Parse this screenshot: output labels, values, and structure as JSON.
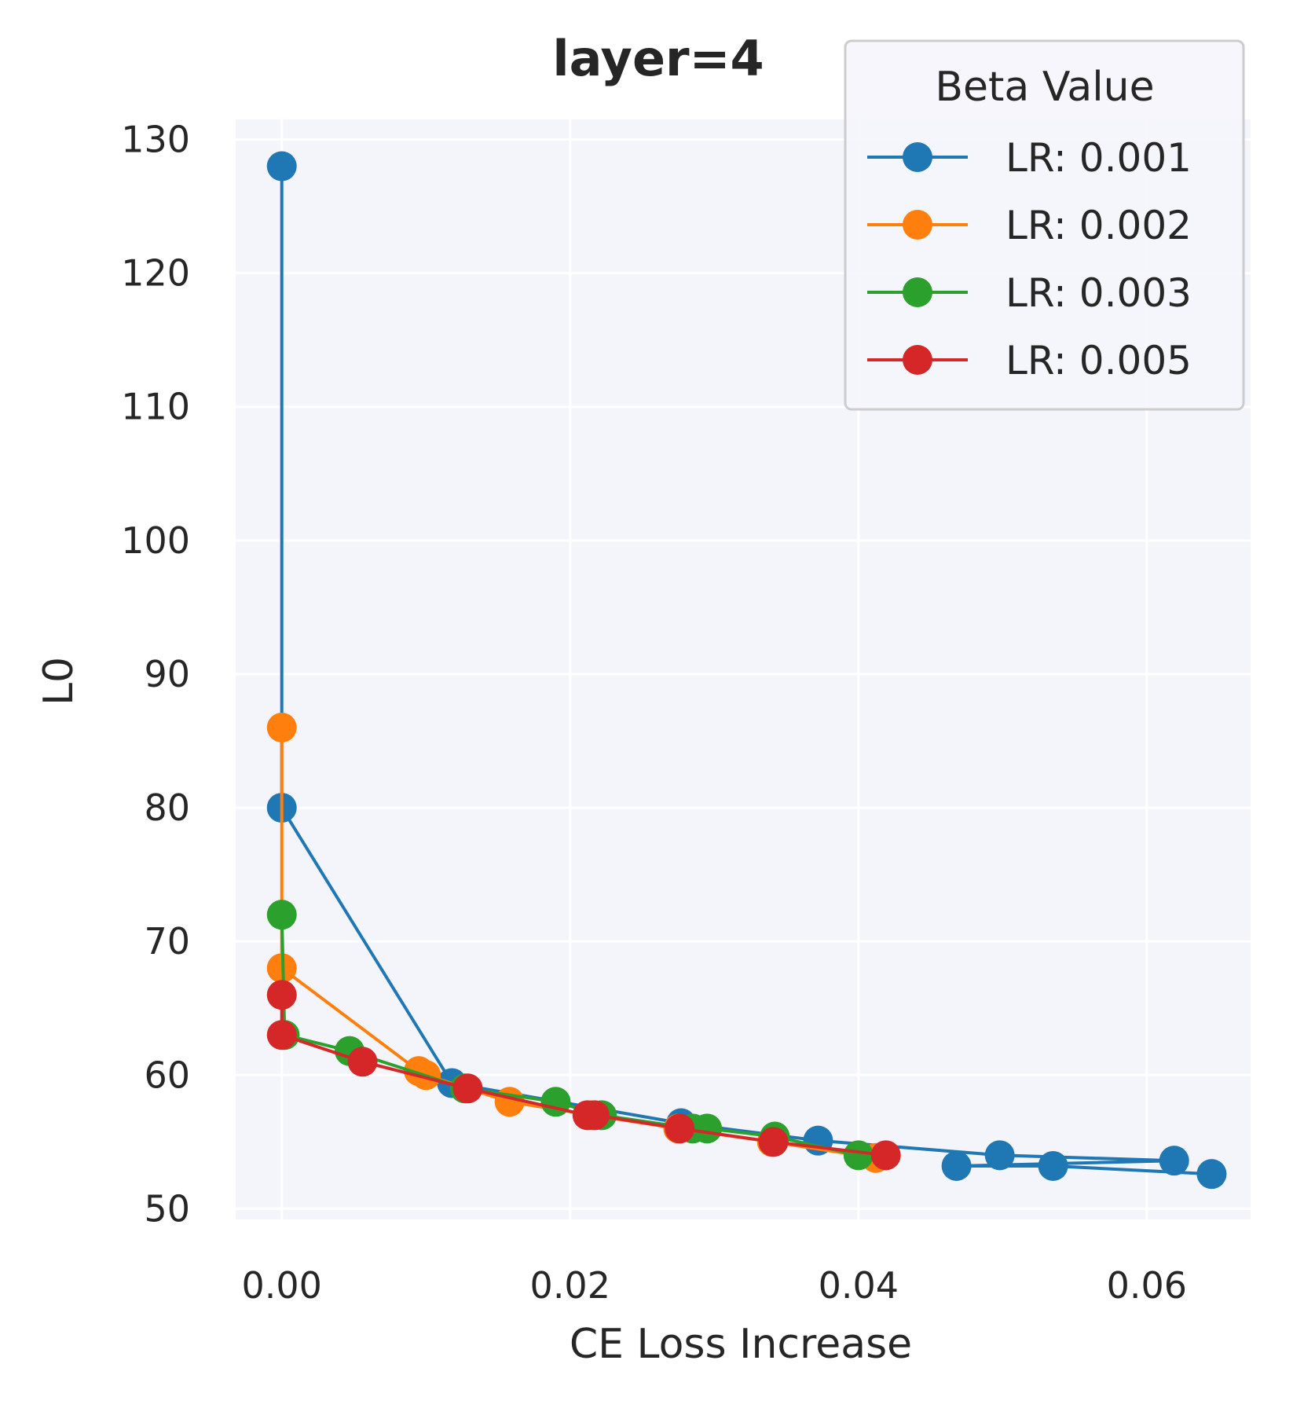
{
  "chart_data": {
    "type": "line",
    "title": "layer=4",
    "xlabel": "CE Loss Increase",
    "ylabel": "L0",
    "xlim": [
      -0.0032,
      0.0672
    ],
    "ylim": [
      49.2,
      131.5
    ],
    "xticks": [
      0.0,
      0.02,
      0.04,
      0.06
    ],
    "xtick_labels": [
      "0.00",
      "0.02",
      "0.04",
      "0.06"
    ],
    "yticks": [
      50,
      60,
      70,
      80,
      90,
      100,
      110,
      120,
      130
    ],
    "ytick_labels": [
      "50",
      "60",
      "70",
      "80",
      "90",
      "100",
      "110",
      "120",
      "130"
    ],
    "grid": true,
    "background": "#f4f5fb",
    "legend": {
      "title": "Beta Value",
      "placement": "top-right"
    },
    "series": [
      {
        "name": "LR: 0.001",
        "color": "#1f77b4",
        "points": [
          [
            0.0,
            128.0
          ],
          [
            0.0,
            80.0
          ],
          [
            0.0118,
            59.4
          ],
          [
            0.0277,
            56.4
          ],
          [
            0.0372,
            55.1
          ],
          [
            0.0498,
            54.0
          ],
          [
            0.0619,
            53.6
          ],
          [
            0.0468,
            53.2
          ],
          [
            0.0535,
            53.2
          ],
          [
            0.0645,
            52.6
          ]
        ]
      },
      {
        "name": "LR: 0.002",
        "color": "#ff7f0e",
        "points": [
          [
            0.0,
            86.0
          ],
          [
            0.0,
            68.0
          ],
          [
            0.0095,
            60.3
          ],
          [
            0.01,
            60.0
          ],
          [
            0.0158,
            58.0
          ],
          [
            0.0215,
            57.0
          ],
          [
            0.0275,
            56.0
          ],
          [
            0.034,
            55.0
          ],
          [
            0.0412,
            53.8
          ]
        ]
      },
      {
        "name": "LR: 0.003",
        "color": "#2ca02c",
        "points": [
          [
            0.0,
            72.0
          ],
          [
            0.0002,
            63.0
          ],
          [
            0.0047,
            61.8
          ],
          [
            0.0127,
            59.0
          ],
          [
            0.019,
            58.0
          ],
          [
            0.0222,
            57.0
          ],
          [
            0.0285,
            56.0
          ],
          [
            0.0295,
            56.0
          ],
          [
            0.0342,
            55.4
          ],
          [
            0.04,
            54.0
          ]
        ]
      },
      {
        "name": "LR: 0.005",
        "color": "#d62728",
        "points": [
          [
            0.0,
            66.0
          ],
          [
            0.0,
            63.0
          ],
          [
            0.0056,
            61.0
          ],
          [
            0.0129,
            59.0
          ],
          [
            0.0212,
            57.0
          ],
          [
            0.0217,
            57.0
          ],
          [
            0.0276,
            56.0
          ],
          [
            0.0341,
            55.0
          ],
          [
            0.0419,
            54.0
          ]
        ]
      }
    ]
  }
}
